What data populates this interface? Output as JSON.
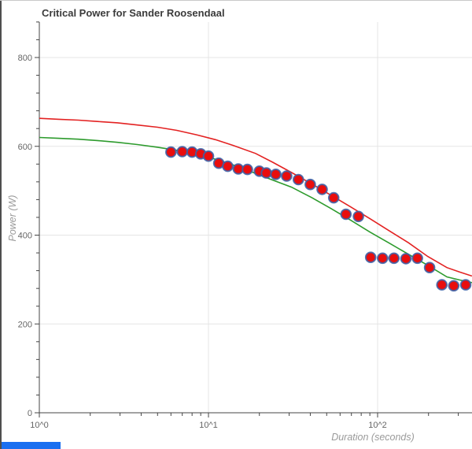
{
  "window": {
    "status_bar_color": "#1a6ff0"
  },
  "chart_data": {
    "type": "scatter",
    "title": "Critical Power for Sander Roosendaal",
    "xlabel": "Duration (seconds)",
    "ylabel": "Power (W)",
    "x_scale": "log",
    "xlim": [
      1,
      361
    ],
    "ylim": [
      0,
      880
    ],
    "grid": true,
    "legend": "none",
    "axis_color": "#444444",
    "grid_color": "#e5e5e5",
    "tick_label_color": "#666666",
    "x_ticks": [
      {
        "value": 1,
        "label": "10^0"
      },
      {
        "value": 10,
        "label": "10^1"
      },
      {
        "value": 100,
        "label": "10^2"
      }
    ],
    "y_ticks": [
      {
        "value": 0,
        "label": "0"
      },
      {
        "value": 200,
        "label": "200"
      },
      {
        "value": 400,
        "label": "400"
      },
      {
        "value": 600,
        "label": "600"
      },
      {
        "value": 800,
        "label": "800"
      }
    ],
    "series": [
      {
        "name": "measured power points",
        "kind": "scatter",
        "marker_fill": "#e90d0d",
        "marker_stroke": "#3a62a8",
        "points": [
          [
            6,
            587
          ],
          [
            7,
            588
          ],
          [
            8,
            587
          ],
          [
            9,
            583
          ],
          [
            10,
            578
          ],
          [
            11.5,
            562
          ],
          [
            13,
            555
          ],
          [
            15,
            549
          ],
          [
            17,
            548
          ],
          [
            20,
            544
          ],
          [
            22,
            540
          ],
          [
            25,
            537
          ],
          [
            29,
            533
          ],
          [
            34,
            525
          ],
          [
            40,
            514
          ],
          [
            47,
            503
          ],
          [
            55,
            484
          ],
          [
            65,
            447
          ],
          [
            77,
            442
          ],
          [
            91,
            350
          ],
          [
            107,
            348
          ],
          [
            125,
            348
          ],
          [
            147,
            347
          ],
          [
            172,
            348
          ],
          [
            203,
            327
          ],
          [
            240,
            288
          ],
          [
            282,
            286
          ],
          [
            332,
            288
          ]
        ]
      },
      {
        "name": "critical power model (red)",
        "kind": "line",
        "color": "#e32222",
        "points": [
          [
            1,
            663
          ],
          [
            1.3,
            661
          ],
          [
            1.7,
            659
          ],
          [
            2.2,
            656
          ],
          [
            2.9,
            653
          ],
          [
            3.8,
            648
          ],
          [
            5,
            643
          ],
          [
            6.5,
            636
          ],
          [
            8.5,
            626
          ],
          [
            11,
            615
          ],
          [
            14,
            602
          ],
          [
            19,
            584
          ],
          [
            24,
            564
          ],
          [
            31,
            541
          ],
          [
            41,
            515
          ],
          [
            53,
            490
          ],
          [
            69,
            464
          ],
          [
            90,
            437
          ],
          [
            117,
            410
          ],
          [
            152,
            383
          ],
          [
            198,
            352
          ],
          [
            257,
            327
          ],
          [
            305,
            317
          ],
          [
            361,
            308
          ]
        ]
      },
      {
        "name": "critical power model (green)",
        "kind": "line",
        "color": "#2d9b2d",
        "points": [
          [
            1,
            620
          ],
          [
            1.3,
            618
          ],
          [
            1.7,
            616
          ],
          [
            2.2,
            613
          ],
          [
            2.9,
            609
          ],
          [
            3.8,
            604
          ],
          [
            5,
            598
          ],
          [
            6.5,
            591
          ],
          [
            8.5,
            582
          ],
          [
            11,
            571
          ],
          [
            14,
            558
          ],
          [
            19,
            539
          ],
          [
            24,
            524
          ],
          [
            31,
            508
          ],
          [
            41,
            484
          ],
          [
            53,
            460
          ],
          [
            69,
            434
          ],
          [
            90,
            407
          ],
          [
            117,
            382
          ],
          [
            152,
            357
          ],
          [
            198,
            332
          ],
          [
            257,
            306
          ],
          [
            305,
            299
          ],
          [
            361,
            293
          ]
        ]
      }
    ]
  }
}
